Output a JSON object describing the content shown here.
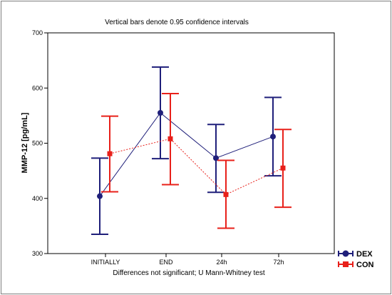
{
  "chart_data": {
    "type": "line",
    "title": "Vertical bars denote 0.95 confidence intervals",
    "xlabel": "Differences not significant; U Mann-Whitney test",
    "ylabel": "MMP-12 [pg/mL]",
    "categories": [
      "INITIALLY",
      "END",
      "24h",
      "72h"
    ],
    "ylim": [
      300,
      700
    ],
    "yticks": [
      300,
      400,
      500,
      600,
      700
    ],
    "grid": false,
    "legend_position": "bottom-right",
    "series": [
      {
        "name": "DEX",
        "color": "#1f1f7a",
        "marker": "circle",
        "line_style": "solid",
        "values": [
          404,
          555,
          473,
          512
        ],
        "ci_low": [
          335,
          472,
          411,
          441
        ],
        "ci_high": [
          473,
          638,
          534,
          583
        ]
      },
      {
        "name": "CON",
        "color": "#e8201a",
        "marker": "square",
        "line_style": "dotted",
        "values": [
          481,
          508,
          407,
          455
        ],
        "ci_low": [
          412,
          425,
          346,
          384
        ],
        "ci_high": [
          549,
          590,
          469,
          525
        ]
      }
    ]
  }
}
